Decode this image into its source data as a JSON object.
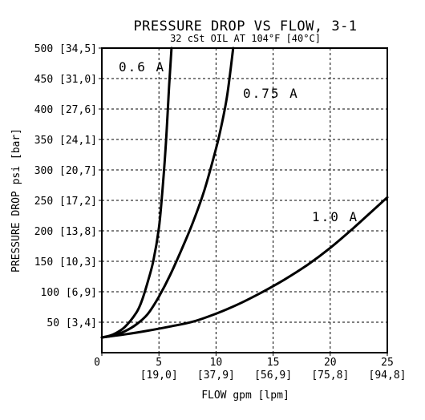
{
  "chart_data": {
    "type": "line",
    "title": "PRESSURE DROP VS FLOW, 3-1",
    "subtitle": "32 cSt OIL AT 104°F [40°C]",
    "xlabel": "FLOW gpm [lpm]",
    "ylabel": "PRESSURE DROP psi [bar]",
    "xlim": [
      0,
      25
    ],
    "ylim": [
      0,
      500
    ],
    "grid": true,
    "x_ticks": [
      {
        "value": 0,
        "label": "0",
        "sublabel": ""
      },
      {
        "value": 5,
        "label": "5",
        "sublabel": "[19,0]"
      },
      {
        "value": 10,
        "label": "10",
        "sublabel": "[37,9]"
      },
      {
        "value": 15,
        "label": "15",
        "sublabel": "[56,9]"
      },
      {
        "value": 20,
        "label": "20",
        "sublabel": "[75,8]"
      },
      {
        "value": 25,
        "label": "25",
        "sublabel": "[94,8]"
      }
    ],
    "y_ticks": [
      {
        "value": 50,
        "label": "50 [3,4]"
      },
      {
        "value": 100,
        "label": "100 [6,9]"
      },
      {
        "value": 150,
        "label": "150 [10,3]"
      },
      {
        "value": 200,
        "label": "200 [13,8]"
      },
      {
        "value": 250,
        "label": "250 [17,2]"
      },
      {
        "value": 300,
        "label": "300 [20,7]"
      },
      {
        "value": 350,
        "label": "350 [24,1]"
      },
      {
        "value": 400,
        "label": "400 [27,6]"
      },
      {
        "value": 450,
        "label": "450 [31,0]"
      },
      {
        "value": 500,
        "label": "500 [34,5]"
      }
    ],
    "series": [
      {
        "name": "0.6 A",
        "x": [
          0,
          1,
          2,
          3,
          3.5,
          4,
          4.5,
          5,
          5.3,
          5.6,
          5.9,
          6.1
        ],
        "y": [
          25,
          30,
          42,
          65,
          85,
          115,
          150,
          205,
          265,
          340,
          440,
          500
        ]
      },
      {
        "name": "0.75 A",
        "x": [
          0,
          1,
          2,
          3,
          4,
          5,
          6,
          7,
          8,
          9,
          10,
          10.5,
          11,
          11.5
        ],
        "y": [
          25,
          28,
          35,
          46,
          63,
          92,
          128,
          170,
          215,
          268,
          335,
          375,
          425,
          500
        ]
      },
      {
        "name": "1.0 A",
        "x": [
          0,
          2,
          4,
          6,
          8,
          10,
          12,
          14,
          16,
          18,
          20,
          22,
          24,
          25
        ],
        "y": [
          25,
          30,
          36,
          43,
          51,
          64,
          80,
          99,
          120,
          144,
          172,
          204,
          238,
          255
        ]
      }
    ]
  }
}
